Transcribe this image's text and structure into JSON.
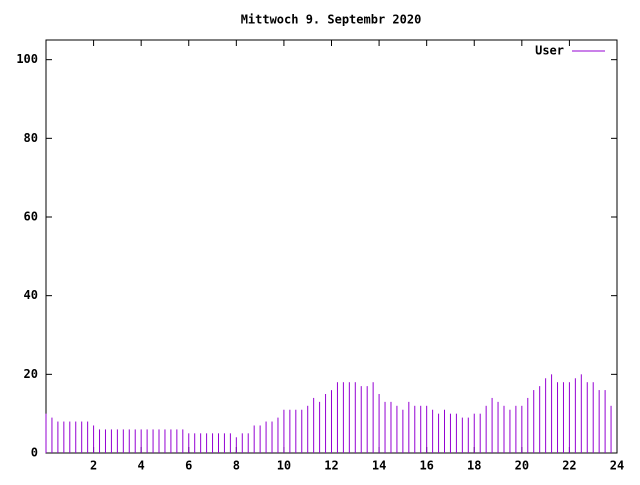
{
  "chart_data": {
    "type": "impulses",
    "title": "Mittwoch 9. Septembr 2020",
    "x": [
      0,
      0.25,
      0.5,
      0.75,
      1,
      1.25,
      1.5,
      1.75,
      2,
      2.25,
      2.5,
      2.75,
      3,
      3.25,
      3.5,
      3.75,
      4,
      4.25,
      4.5,
      4.75,
      5,
      5.25,
      5.5,
      5.75,
      6,
      6.25,
      6.5,
      6.75,
      7,
      7.25,
      7.5,
      7.75,
      8,
      8.25,
      8.5,
      8.75,
      9,
      9.25,
      9.5,
      9.75,
      10,
      10.25,
      10.5,
      10.75,
      11,
      11.25,
      11.5,
      11.75,
      12,
      12.25,
      12.5,
      12.75,
      13,
      13.25,
      13.5,
      13.75,
      14,
      14.25,
      14.5,
      14.75,
      15,
      15.25,
      15.5,
      15.75,
      16,
      16.25,
      16.5,
      16.75,
      17,
      17.25,
      17.5,
      17.75,
      18,
      18.25,
      18.5,
      18.75,
      19,
      19.25,
      19.5,
      19.75,
      20,
      20.25,
      20.5,
      20.75,
      21,
      21.25,
      21.5,
      21.75,
      22,
      22.25,
      22.5,
      22.75,
      23,
      23.25,
      23.5,
      23.75
    ],
    "series": [
      {
        "name": "User",
        "color": "#9400d3",
        "values": [
          10,
          9,
          8,
          8,
          8,
          8,
          8,
          8,
          7,
          6,
          6,
          6,
          6,
          6,
          6,
          6,
          6,
          6,
          6,
          6,
          6,
          6,
          6,
          6,
          5,
          5,
          5,
          5,
          5,
          5,
          5,
          5,
          4,
          5,
          5,
          7,
          7,
          8,
          8,
          9,
          11,
          11,
          11,
          11,
          12,
          14,
          13,
          15,
          16,
          18,
          18,
          18,
          18,
          17,
          17,
          18,
          15,
          13,
          13,
          12,
          11,
          13,
          12,
          12,
          12,
          11,
          10,
          11,
          10,
          10,
          9,
          9,
          10,
          10,
          12,
          14,
          13,
          12,
          11,
          12,
          12,
          14,
          16,
          17,
          19,
          20,
          18,
          18,
          18,
          19,
          20,
          18,
          18,
          16,
          16,
          12
        ]
      }
    ],
    "xlim": [
      0,
      24
    ],
    "ylim": [
      0,
      105
    ],
    "xticks": [
      2,
      4,
      6,
      8,
      10,
      12,
      14,
      16,
      18,
      20,
      22,
      24
    ],
    "yticks": [
      0,
      20,
      40,
      60,
      80,
      100
    ],
    "legend": "top-right"
  }
}
